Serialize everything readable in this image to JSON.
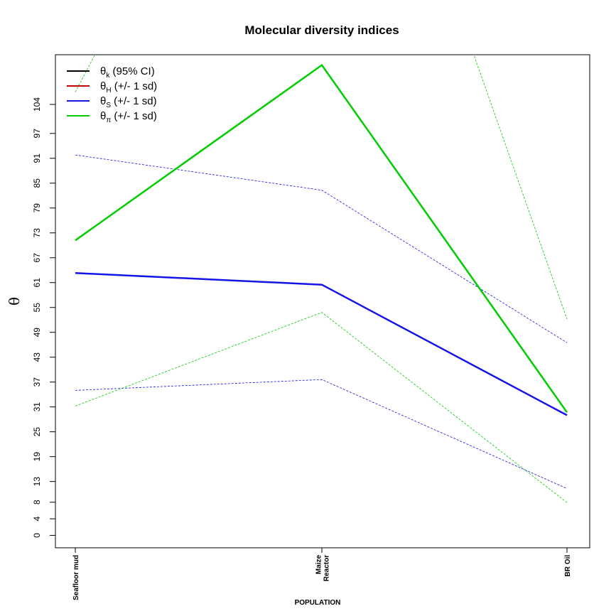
{
  "chart_data": {
    "type": "line",
    "title": "Molecular diversity indices",
    "xlabel": "POPULATION",
    "ylabel": "θ",
    "categories": [
      "Seafloor mud",
      "Maize\nReactor",
      "BR Oil"
    ],
    "y_ticks": [
      "0",
      "4",
      "8",
      "13",
      "19",
      "25",
      "31",
      "37",
      "43",
      "49",
      "55",
      "61",
      "67",
      "73",
      "79",
      "85",
      "91",
      "97",
      "104"
    ],
    "ylim": [
      -3,
      116
    ],
    "grid": false,
    "legend_position": "top-left",
    "legend": [
      {
        "symbol": "θ",
        "sub": "k",
        "text": "(95% CI)",
        "color": "#000000"
      },
      {
        "symbol": "θ",
        "sub": "H",
        "text": "(+/- 1 sd)",
        "color": "#c00000"
      },
      {
        "symbol": "θ",
        "sub": "S",
        "text": "(+/- 1 sd)",
        "color": "#1414e6"
      },
      {
        "symbol": "θ",
        "sub": "π",
        "text": "(+/- 1 sd)",
        "color": "#00cc00"
      }
    ],
    "series": [
      {
        "name": "θS",
        "color": "#1414e6",
        "values": [
          63.3,
          60.5,
          29.0
        ],
        "style": "solid"
      },
      {
        "name": "θS + 1 sd",
        "color": "#1414e6",
        "values": [
          91.8,
          83.3,
          46.5
        ],
        "style": "dashed"
      },
      {
        "name": "θS - 1 sd",
        "color": "#1414e6",
        "values": [
          35.0,
          37.6,
          11.3
        ],
        "style": "dashed"
      },
      {
        "name": "θπ",
        "color": "#00cc00",
        "values": [
          71.2,
          113.5,
          29.7
        ],
        "style": "solid"
      },
      {
        "name": "θπ + 1 sd",
        "color": "#00cc00",
        "values": [
          107.0,
          220.0,
          52.2
        ],
        "style": "dashed"
      },
      {
        "name": "θπ - 1 sd",
        "color": "#00cc00",
        "values": [
          31.2,
          53.8,
          7.9
        ],
        "style": "dashed"
      }
    ]
  }
}
